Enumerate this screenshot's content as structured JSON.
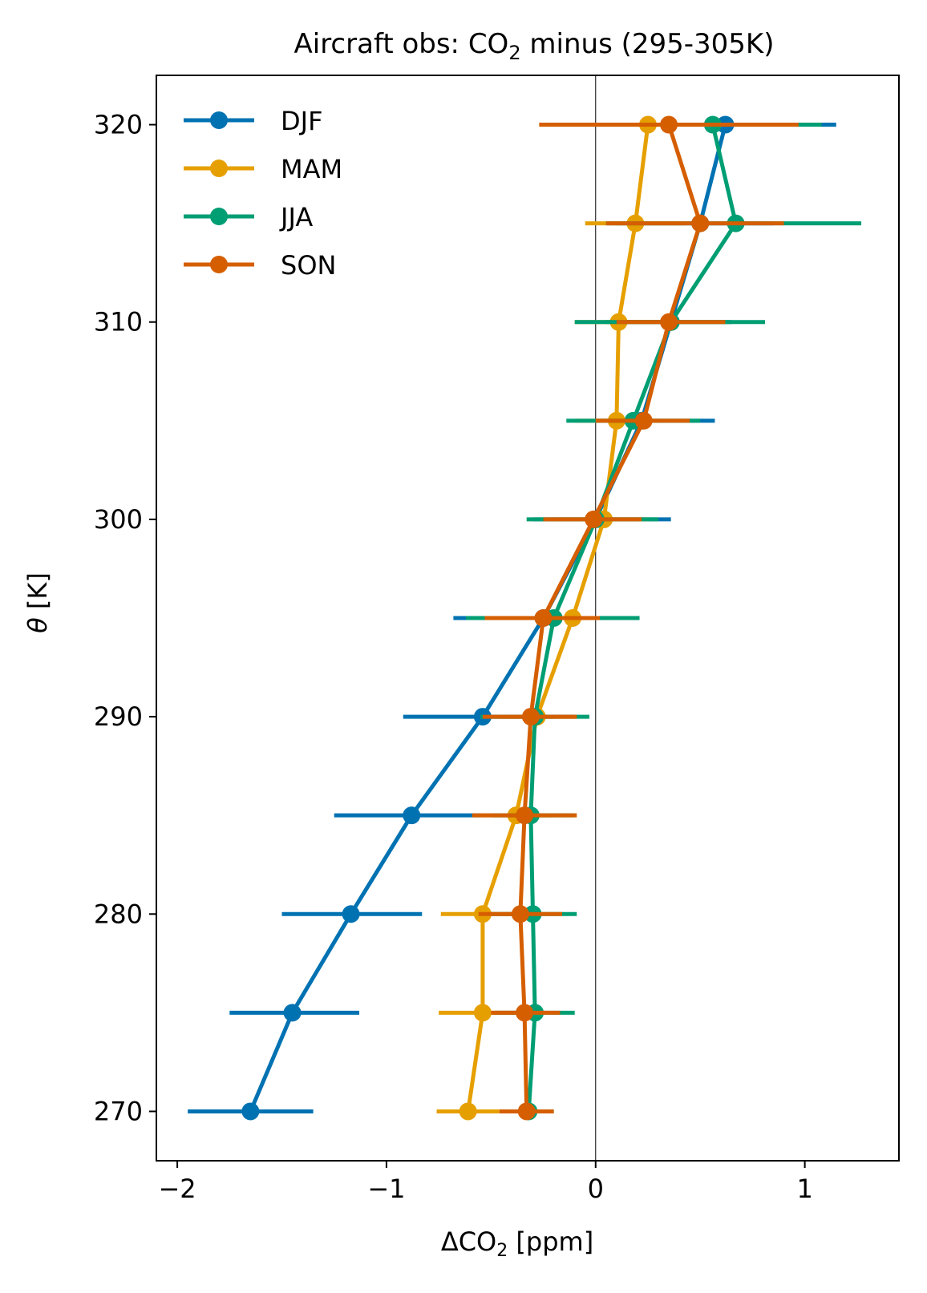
{
  "chart_data": {
    "type": "line",
    "title": {
      "prefix": "Aircraft obs: CO",
      "sub": "2",
      "suffix": " minus (295-305K)"
    },
    "xlabel": {
      "prefix": "ΔCO",
      "sub": "2",
      "suffix": " [ppm]"
    },
    "ylabel": {
      "var": "θ",
      "unit": " [K]"
    },
    "xlim": [
      -2.1,
      1.45
    ],
    "ylim": [
      267.5,
      322.5
    ],
    "xticks": [
      -2,
      -1,
      0,
      1
    ],
    "xtick_labels": [
      "−2",
      "−1",
      "0",
      "1"
    ],
    "yticks": [
      270,
      280,
      290,
      300,
      310,
      320
    ],
    "ytick_labels": [
      "270",
      "280",
      "290",
      "300",
      "310",
      "320"
    ],
    "reference_line_x": 0,
    "legend_location": "top-left",
    "series": [
      {
        "name": "DJF",
        "color": "#0072b2",
        "theta": [
          270,
          275,
          280,
          285,
          290,
          295,
          300,
          305,
          310,
          315,
          320
        ],
        "values": [
          -1.65,
          -1.45,
          -1.17,
          -0.88,
          -0.54,
          -0.25,
          0.0,
          0.22,
          0.36,
          0.5,
          0.62
        ],
        "err_low": [
          -1.95,
          -1.75,
          -1.5,
          -1.25,
          -0.92,
          -0.68,
          -0.3,
          0.0,
          0.05,
          0.1,
          0.3
        ],
        "err_high": [
          -1.35,
          -1.13,
          -0.83,
          -0.55,
          -0.2,
          0.05,
          0.36,
          0.57,
          0.65,
          0.85,
          1.15
        ]
      },
      {
        "name": "MAM",
        "color": "#e69f00",
        "theta": [
          270,
          275,
          280,
          285,
          290,
          295,
          300,
          305,
          310,
          315,
          320
        ],
        "values": [
          -0.61,
          -0.54,
          -0.54,
          -0.38,
          -0.28,
          -0.11,
          0.04,
          0.1,
          0.11,
          0.19,
          0.25
        ],
        "err_low": [
          -0.76,
          -0.75,
          -0.74,
          -0.55,
          -0.45,
          -0.35,
          -0.2,
          -0.1,
          -0.1,
          -0.05,
          -0.1
        ],
        "err_high": [
          -0.46,
          -0.33,
          -0.34,
          -0.2,
          -0.1,
          0.1,
          0.25,
          0.3,
          0.32,
          0.42,
          0.6
        ]
      },
      {
        "name": "JJA",
        "color": "#009e73",
        "theta": [
          270,
          275,
          280,
          285,
          290,
          295,
          300,
          305,
          310,
          315,
          320
        ],
        "values": [
          -0.32,
          -0.29,
          -0.3,
          -0.31,
          -0.29,
          -0.2,
          0.0,
          0.18,
          0.36,
          0.67,
          0.56
        ],
        "err_low": [
          -0.45,
          -0.48,
          -0.5,
          -0.5,
          -0.55,
          -0.62,
          -0.33,
          -0.14,
          -0.1,
          0.05,
          0.0
        ],
        "err_high": [
          -0.2,
          -0.1,
          -0.09,
          -0.1,
          -0.03,
          0.21,
          0.3,
          0.5,
          0.81,
          1.27,
          1.08
        ]
      },
      {
        "name": "SON",
        "color": "#d55e00",
        "theta": [
          270,
          275,
          280,
          285,
          290,
          295,
          300,
          305,
          310,
          315,
          320
        ],
        "values": [
          -0.33,
          -0.34,
          -0.36,
          -0.34,
          -0.31,
          -0.25,
          -0.01,
          0.23,
          0.35,
          0.5,
          0.35
        ],
        "err_low": [
          -0.46,
          -0.5,
          -0.56,
          -0.59,
          -0.54,
          -0.53,
          -0.25,
          0.0,
          0.1,
          0.05,
          -0.27
        ],
        "err_high": [
          -0.2,
          -0.17,
          -0.16,
          -0.09,
          -0.09,
          0.02,
          0.22,
          0.45,
          0.62,
          0.9,
          0.97
        ]
      }
    ]
  }
}
